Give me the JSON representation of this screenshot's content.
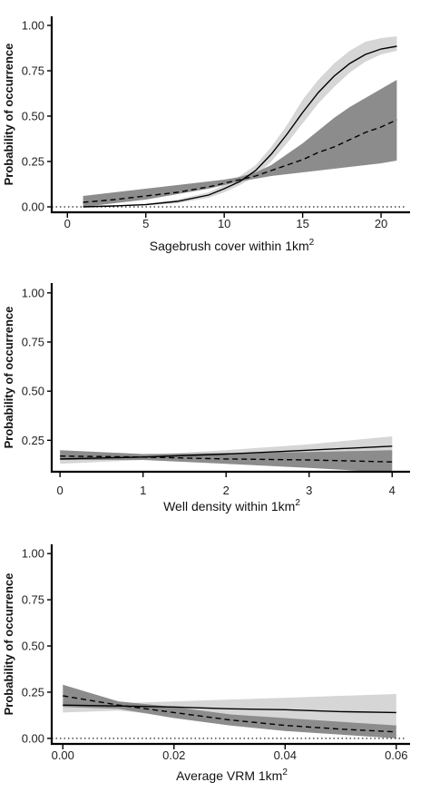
{
  "chart_data": [
    {
      "type": "line",
      "xlabel": "Sagebrush cover within 1km",
      "xlabel_sup": "2",
      "ylabel": "Probability of occurrence",
      "xlim": [
        -1,
        21.5
      ],
      "ylim": [
        -0.03,
        1.05
      ],
      "xticks": [
        0,
        5,
        10,
        15,
        20
      ],
      "xtick_labels": [
        "0",
        "5",
        "10",
        "15",
        "20"
      ],
      "yticks": [
        0,
        0.25,
        0.5,
        0.75,
        1.0
      ],
      "ytick_labels": [
        "0.00",
        "0.25",
        "0.50",
        "0.75",
        "1.00"
      ],
      "reference_line": {
        "y": 0,
        "style": "dotted"
      },
      "series": [
        {
          "line_style": "solid",
          "band_color": "#d6d6d6",
          "x": [
            1,
            3,
            5,
            7,
            9,
            10,
            11,
            12,
            13,
            14,
            15,
            16,
            17,
            18,
            19,
            20,
            21
          ],
          "y": [
            0.0,
            0.005,
            0.012,
            0.03,
            0.065,
            0.1,
            0.14,
            0.2,
            0.29,
            0.4,
            0.52,
            0.63,
            0.72,
            0.79,
            0.84,
            0.87,
            0.885
          ],
          "lower": [
            0.0,
            0.003,
            0.008,
            0.02,
            0.05,
            0.08,
            0.12,
            0.17,
            0.25,
            0.35,
            0.46,
            0.57,
            0.66,
            0.74,
            0.8,
            0.84,
            0.86
          ],
          "upper": [
            0.01,
            0.008,
            0.018,
            0.04,
            0.08,
            0.12,
            0.17,
            0.23,
            0.33,
            0.45,
            0.59,
            0.7,
            0.79,
            0.86,
            0.91,
            0.93,
            0.94
          ]
        },
        {
          "line_style": "dashed",
          "band_color": "#8c8c8c",
          "x": [
            1,
            3,
            5,
            7,
            9,
            10,
            11,
            12,
            13,
            14,
            15,
            16,
            17,
            18,
            19,
            20,
            21
          ],
          "y": [
            0.025,
            0.04,
            0.06,
            0.08,
            0.11,
            0.13,
            0.15,
            0.17,
            0.2,
            0.23,
            0.26,
            0.3,
            0.33,
            0.37,
            0.41,
            0.44,
            0.48
          ],
          "lower": [
            0.0,
            0.02,
            0.04,
            0.07,
            0.1,
            0.12,
            0.14,
            0.155,
            0.17,
            0.18,
            0.19,
            0.2,
            0.21,
            0.22,
            0.23,
            0.24,
            0.255
          ],
          "upper": [
            0.06,
            0.08,
            0.1,
            0.12,
            0.14,
            0.15,
            0.165,
            0.19,
            0.23,
            0.29,
            0.35,
            0.42,
            0.49,
            0.55,
            0.6,
            0.65,
            0.7
          ]
        }
      ]
    },
    {
      "type": "line",
      "xlabel": "Well density within 1km",
      "xlabel_sup": "2",
      "ylabel": "Probability of occurrence",
      "xlim": [
        -0.1,
        4.15
      ],
      "ylim": [
        0.09,
        1.05
      ],
      "xticks": [
        0,
        1,
        2,
        3,
        4
      ],
      "xtick_labels": [
        "0",
        "1",
        "2",
        "3",
        "4"
      ],
      "yticks": [
        0.25,
        0.5,
        0.75,
        1.0
      ],
      "ytick_labels": [
        "0.25",
        "0.50",
        "0.75",
        "1.00"
      ],
      "series": [
        {
          "line_style": "solid",
          "band_color": "#d6d6d6",
          "x": [
            0,
            1,
            2,
            3,
            4
          ],
          "y": [
            0.155,
            0.165,
            0.18,
            0.2,
            0.22
          ],
          "lower": [
            0.13,
            0.15,
            0.155,
            0.165,
            0.17
          ],
          "upper": [
            0.18,
            0.175,
            0.2,
            0.23,
            0.27
          ]
        },
        {
          "line_style": "dashed",
          "band_color": "#8c8c8c",
          "x": [
            0,
            1,
            2,
            3,
            4
          ],
          "y": [
            0.17,
            0.165,
            0.155,
            0.15,
            0.14
          ],
          "lower": [
            0.15,
            0.15,
            0.13,
            0.11,
            0.085
          ],
          "upper": [
            0.2,
            0.18,
            0.185,
            0.19,
            0.2
          ]
        }
      ]
    },
    {
      "type": "line",
      "xlabel": "Average VRM 1km",
      "xlabel_sup": "2",
      "ylabel": "Probability of occurrence",
      "xlim": [
        -0.002,
        0.0615
      ],
      "ylim": [
        -0.03,
        1.05
      ],
      "xticks": [
        0,
        0.02,
        0.04,
        0.06
      ],
      "xtick_labels": [
        "0.00",
        "0.02",
        "0.04",
        "0.06"
      ],
      "yticks": [
        0,
        0.25,
        0.5,
        0.75,
        1.0
      ],
      "ytick_labels": [
        "0.00",
        "0.25",
        "0.50",
        "0.75",
        "1.00"
      ],
      "reference_line": {
        "y": 0,
        "style": "dotted"
      },
      "series": [
        {
          "line_style": "solid",
          "band_color": "#d6d6d6",
          "x": [
            0,
            0.01,
            0.02,
            0.03,
            0.04,
            0.05,
            0.06
          ],
          "y": [
            0.18,
            0.175,
            0.17,
            0.16,
            0.155,
            0.145,
            0.14
          ],
          "lower": [
            0.14,
            0.15,
            0.12,
            0.1,
            0.08,
            0.07,
            0.06
          ],
          "upper": [
            0.2,
            0.19,
            0.2,
            0.21,
            0.22,
            0.23,
            0.24
          ]
        },
        {
          "line_style": "dashed",
          "band_color": "#8c8c8c",
          "x": [
            0,
            0.01,
            0.02,
            0.03,
            0.04,
            0.05,
            0.06
          ],
          "y": [
            0.23,
            0.18,
            0.14,
            0.1,
            0.07,
            0.05,
            0.035
          ],
          "lower": [
            0.17,
            0.16,
            0.11,
            0.07,
            0.04,
            0.02,
            0.0
          ],
          "upper": [
            0.29,
            0.2,
            0.17,
            0.13,
            0.11,
            0.09,
            0.07
          ]
        }
      ]
    }
  ]
}
